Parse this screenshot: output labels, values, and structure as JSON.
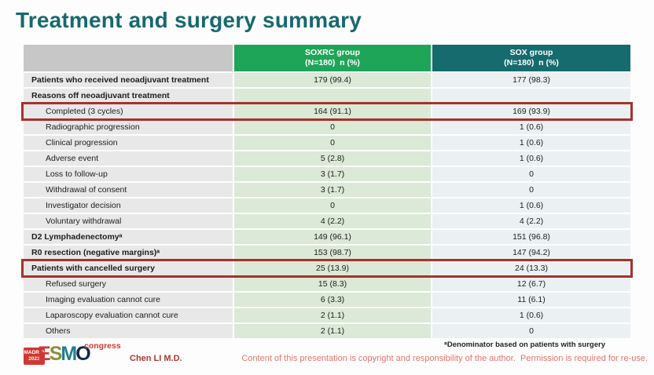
{
  "slide": {
    "title": "Treatment and surgery summary"
  },
  "table": {
    "header": {
      "label": "",
      "soxrc_line1": "SOXRC group",
      "soxrc_line2": "(N=180)  n (%)",
      "sox_line1": "SOX group",
      "sox_line2": "(N=180)  n (%)"
    },
    "rows": [
      {
        "label": "Patients who received neoadjuvant treatment",
        "soxrc": "179 (99.4)",
        "sox": "177 (98.3)"
      },
      {
        "label": "Reasons off neoadjuvant treatment",
        "soxrc": "",
        "sox": ""
      },
      {
        "label": "Completed (3 cycles)",
        "soxrc": "164 (91.1)",
        "sox": "169 (93.9)"
      },
      {
        "label": "Radiographic progression",
        "soxrc": "0",
        "sox": "1 (0.6)"
      },
      {
        "label": "Clinical progression",
        "soxrc": "0",
        "sox": "1 (0.6)"
      },
      {
        "label": "Adverse event",
        "soxrc": "5 (2.8)",
        "sox": "1 (0.6)"
      },
      {
        "label": "Loss to follow-up",
        "soxrc": "3 (1.7)",
        "sox": "0"
      },
      {
        "label": "Withdrawal of consent",
        "soxrc": "3 (1.7)",
        "sox": "0"
      },
      {
        "label": "Investigator decision",
        "soxrc": "0",
        "sox": "1 (0.6)"
      },
      {
        "label": "Voluntary withdrawal",
        "soxrc": "4 (2.2)",
        "sox": "4 (2.2)"
      },
      {
        "label": "D2 Lymphadenectomyᵃ",
        "soxrc": "149 (96.1)",
        "sox": "151 (96.8)"
      },
      {
        "label": "R0 resection (negative margins)ᵃ",
        "soxrc": "153 (98.7)",
        "sox": "147 (94.2)"
      },
      {
        "label": "Patients with cancelled surgery",
        "soxrc": "25 (13.9)",
        "sox": "24 (13.3)"
      },
      {
        "label": "Refused surgery",
        "soxrc": "15 (8.3)",
        "sox": "12 (6.7)"
      },
      {
        "label": "Imaging evaluation cannot cure",
        "soxrc": "6 (3.3)",
        "sox": "11 (6.1)"
      },
      {
        "label": "Laparoscopy evaluation cannot cure",
        "soxrc": "2 (1.1)",
        "sox": "1 (0.6)"
      },
      {
        "label": "Others",
        "soxrc": "2 (1.1)",
        "sox": "0"
      }
    ]
  },
  "footer": {
    "footnote": "ᵃDenominator based on patients with surgery",
    "copyright": "Content of this presentation is copyright and responsibility of the author.  Permission is required for re-use.",
    "author": "Chen LI M.D.",
    "logo": {
      "city": "MADRID",
      "year": "2023",
      "letters": [
        "E",
        "S",
        "M",
        "O"
      ],
      "congress": "congress"
    }
  },
  "colors": {
    "title": "#17696e",
    "header_soxrc_bg": "#1ea558",
    "header_sox_bg": "#156b6e",
    "header_label_bg": "#c7c7c7",
    "cell_label_bg": "#e8e8e8",
    "cell_soxrc_bg": "#dbe9d7",
    "cell_sox_bg": "#ebf1f2",
    "highlight_border": "#a6322c",
    "copyright_text": "#e4756d",
    "logo_red": "#cf3832"
  }
}
